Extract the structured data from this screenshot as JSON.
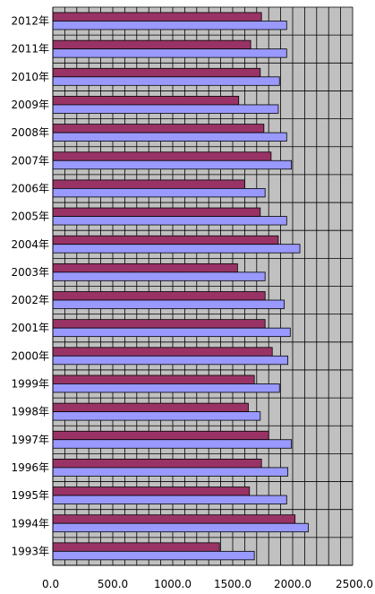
{
  "chart_data": {
    "type": "bar",
    "orientation": "horizontal",
    "categories": [
      "2012年",
      "2011年",
      "2010年",
      "2009年",
      "2008年",
      "2007年",
      "2006年",
      "2005年",
      "2004年",
      "2003年",
      "2002年",
      "2001年",
      "2000年",
      "1999年",
      "1998年",
      "1997年",
      "1996年",
      "1995年",
      "1994年",
      "1993年"
    ],
    "series": [
      {
        "color": "#993366",
        "values": [
          1740,
          1650,
          1730,
          1550,
          1760,
          1820,
          1600,
          1730,
          1880,
          1540,
          1770,
          1770,
          1830,
          1680,
          1630,
          1800,
          1740,
          1640,
          2020,
          1390
        ]
      },
      {
        "color": "#9999ff",
        "values": [
          1950,
          1950,
          1890,
          1880,
          1950,
          1990,
          1770,
          1950,
          2060,
          1770,
          1930,
          1980,
          1960,
          1890,
          1730,
          1990,
          1960,
          1950,
          2130,
          1680
        ]
      }
    ],
    "x_ticks": [
      "0.0",
      "500.0",
      "1000.0",
      "1500.0",
      "2000.0",
      "2500.0"
    ],
    "xlim": [
      0,
      2500
    ],
    "grid": true,
    "plot_background": "#c0c0c0",
    "gridline_color": "#000000",
    "legend": "none"
  }
}
